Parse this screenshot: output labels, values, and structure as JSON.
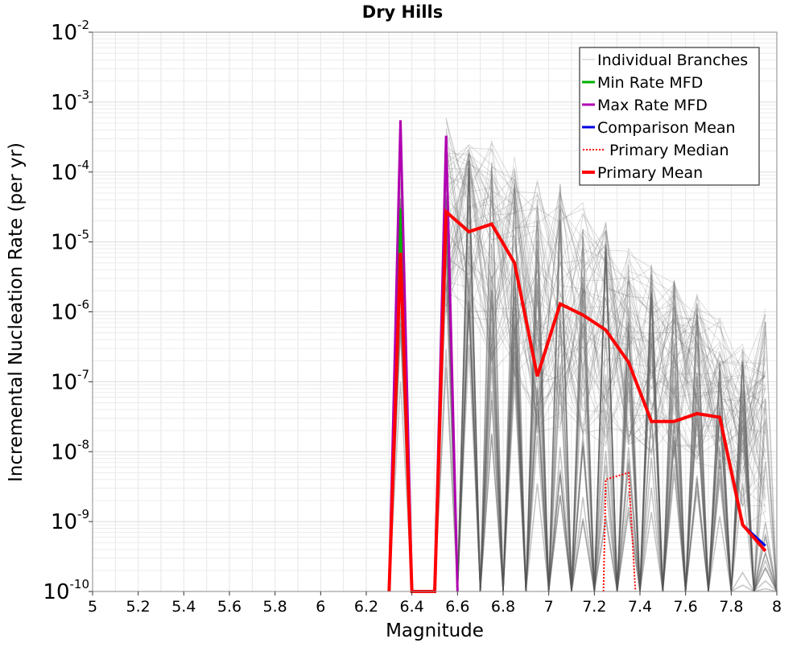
{
  "chart_data": {
    "type": "line",
    "title": "Dry Hills",
    "xlabel": "Magnitude",
    "ylabel": "Incremental Nucleation Rate (per yr)",
    "x_scale": "linear",
    "y_scale": "log",
    "xlim": [
      5,
      8
    ],
    "ylim": [
      1e-10,
      0.01
    ],
    "grid": true,
    "legend_position": "top-right",
    "x_ticks": [
      5,
      5.2,
      5.4,
      5.6,
      5.8,
      6,
      6.2,
      6.4,
      6.6,
      6.8,
      7,
      7.2,
      7.4,
      7.6,
      7.8,
      8
    ],
    "x_tick_labels": [
      "5",
      "5.2",
      "5.4",
      "5.6",
      "5.8",
      "6",
      "6.2",
      "6.4",
      "6.6",
      "6.8",
      "7",
      "7.2",
      "7.4",
      "7.6",
      "7.8",
      "8"
    ],
    "y_ticks": [
      {
        "value": 0.01,
        "base": "10",
        "exp": "-2"
      },
      {
        "value": 0.001,
        "base": "10",
        "exp": "-3"
      },
      {
        "value": 0.0001,
        "base": "10",
        "exp": "-4"
      },
      {
        "value": 1e-05,
        "base": "10",
        "exp": "-5"
      },
      {
        "value": 1e-06,
        "base": "10",
        "exp": "-6"
      },
      {
        "value": 1e-07,
        "base": "10",
        "exp": "-7"
      },
      {
        "value": 1e-08,
        "base": "10",
        "exp": "-8"
      },
      {
        "value": 1e-09,
        "base": "10",
        "exp": "-9"
      },
      {
        "value": 1e-10,
        "base": "10",
        "exp": "-10"
      }
    ],
    "legend": [
      {
        "label": "Individual Branches",
        "color": "#c8c8c8",
        "style": "thin"
      },
      {
        "label": "Min Rate MFD",
        "color": "#00b000",
        "style": "solid"
      },
      {
        "label": "Max Rate MFD",
        "color": "#b000b0",
        "style": "solid"
      },
      {
        "label": "Comparison Mean",
        "color": "#0000e0",
        "style": "solid"
      },
      {
        "label": "Primary Median",
        "color": "#ff0000",
        "style": "dotted"
      },
      {
        "label": "Primary Mean",
        "color": "#ff0000",
        "style": "thick"
      }
    ],
    "branch_bins": [
      {
        "x": 6.35,
        "lo": 1e-07,
        "hi": 0.0003
      },
      {
        "x": 6.55,
        "lo": 1e-07,
        "hi": 0.0006
      },
      {
        "x": 6.65,
        "lo": 1e-07,
        "hi": 0.0003
      },
      {
        "x": 6.75,
        "lo": 1e-08,
        "hi": 0.0003
      },
      {
        "x": 6.85,
        "lo": 1e-08,
        "hi": 0.0002
      },
      {
        "x": 6.95,
        "lo": 1e-09,
        "hi": 8e-05
      },
      {
        "x": 7.05,
        "lo": 1e-09,
        "hi": 7e-05
      },
      {
        "x": 7.15,
        "lo": 1e-09,
        "hi": 4e-05
      },
      {
        "x": 7.25,
        "lo": 1e-09,
        "hi": 2e-05
      },
      {
        "x": 7.35,
        "lo": 1e-09,
        "hi": 1e-05
      },
      {
        "x": 7.45,
        "lo": 1e-09,
        "hi": 5e-06
      },
      {
        "x": 7.55,
        "lo": 1e-09,
        "hi": 3e-06
      },
      {
        "x": 7.65,
        "lo": 1e-09,
        "hi": 2e-06
      },
      {
        "x": 7.75,
        "lo": 1e-09,
        "hi": 1e-06
      },
      {
        "x": 7.85,
        "lo": 1e-10,
        "hi": 4e-07
      },
      {
        "x": 7.95,
        "lo": 1e-10,
        "hi": 1.2e-06
      }
    ],
    "series": [
      {
        "name": "Min Rate MFD",
        "color": "#00b000",
        "points": [
          [
            6.3,
            1e-10
          ],
          [
            6.35,
            3e-05
          ],
          [
            6.4,
            1e-10
          ]
        ]
      },
      {
        "name": "Max Rate MFD",
        "color": "#b000b0",
        "points": [
          [
            6.3,
            1e-10
          ],
          [
            6.35,
            0.00055
          ],
          [
            6.4,
            1e-10
          ],
          [
            6.5,
            1e-10
          ],
          [
            6.55,
            0.00033
          ],
          [
            6.6,
            1e-10
          ]
        ]
      },
      {
        "name": "Comparison Mean",
        "color": "#0000e0",
        "points": [
          [
            7.85,
            9e-10
          ],
          [
            7.95,
            4.5e-10
          ]
        ]
      },
      {
        "name": "Primary Median",
        "color": "#ff0000",
        "dotted": true,
        "points": [
          [
            7.24,
            1e-10
          ],
          [
            7.25,
            4e-09
          ],
          [
            7.35,
            5e-09
          ],
          [
            7.38,
            1e-10
          ]
        ]
      },
      {
        "name": "Primary Mean",
        "color": "#ff0000",
        "thick": true,
        "points": [
          [
            6.3,
            1e-10
          ],
          [
            6.35,
            7e-06
          ],
          [
            6.4,
            1e-10
          ],
          [
            6.5,
            1e-10
          ],
          [
            6.55,
            2.7e-05
          ],
          [
            6.65,
            1.4e-05
          ],
          [
            6.75,
            1.8e-05
          ],
          [
            6.85,
            5e-06
          ],
          [
            6.95,
            1.2e-07
          ],
          [
            7.05,
            1.3e-06
          ],
          [
            7.15,
            9e-07
          ],
          [
            7.25,
            5.5e-07
          ],
          [
            7.35,
            1.9e-07
          ],
          [
            7.45,
            2.7e-08
          ],
          [
            7.55,
            2.7e-08
          ],
          [
            7.65,
            3.5e-08
          ],
          [
            7.75,
            3.1e-08
          ],
          [
            7.85,
            9e-10
          ],
          [
            7.95,
            3.8e-10
          ]
        ]
      }
    ]
  }
}
